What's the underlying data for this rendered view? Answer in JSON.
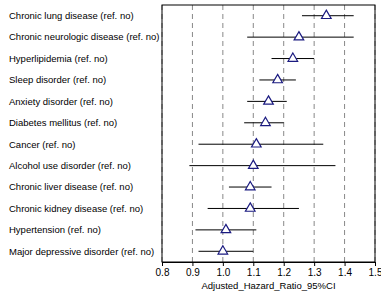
{
  "chart_data": {
    "type": "forest",
    "x_label": "Adjusted_Hazard_Ratio_95%CI",
    "categories": [
      "Chronic lung disease (ref. no)",
      "Chronic neurologic disease (ref. no)",
      "Hyperlipidemia (ref. no)",
      "Sleep disorder (ref. no)",
      "Anxiety disorder (ref. no)",
      "Diabetes mellitus (ref. no)",
      "Cancer (ref. no)",
      "Alcohol use disorder (ref. no)",
      "Chronic liver disease (ref. no)",
      "Chronic kidney disease (ref. no)",
      "Hypertension (ref. no)",
      "Major depressive disorder (ref. no)"
    ],
    "values": [
      1.34,
      1.25,
      1.23,
      1.18,
      1.15,
      1.14,
      1.11,
      1.1,
      1.09,
      1.09,
      1.01,
      1.0
    ],
    "ci_lower": [
      1.26,
      1.08,
      1.16,
      1.12,
      1.08,
      1.07,
      0.92,
      0.89,
      1.02,
      0.95,
      0.91,
      0.92
    ],
    "ci_upper": [
      1.43,
      1.43,
      1.3,
      1.24,
      1.21,
      1.2,
      1.33,
      1.37,
      1.16,
      1.25,
      1.11,
      1.1
    ],
    "color": "#1a1a80",
    "marker": "triangle",
    "xlim": [
      0.8,
      1.5
    ],
    "xticks": [
      0.8,
      0.9,
      {
        "value": 1,
        "label": "1.0"
      },
      1.1,
      1.2,
      1.3,
      1.4,
      1.5
    ],
    "grid": true
  }
}
